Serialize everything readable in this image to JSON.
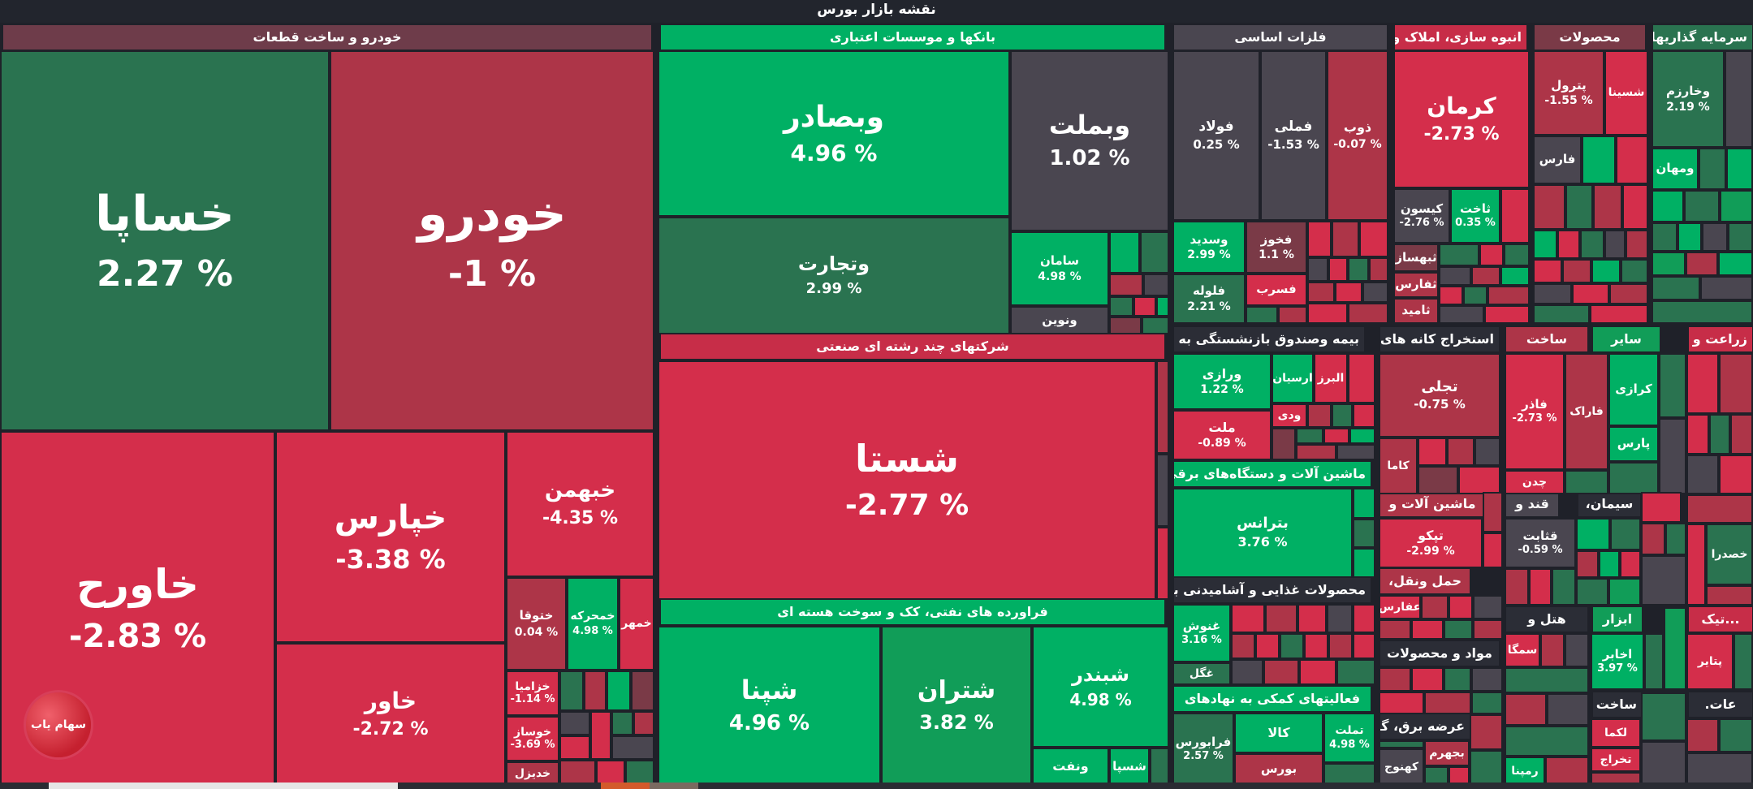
{
  "title": "نقشه بازار بورس",
  "colors": {
    "background": "#1f2129",
    "strong_green": "#00b064",
    "mid_green": "#119d58",
    "dark_green": "#2a7350",
    "neutral": "#4a4650",
    "dark_red": "#7a3a47",
    "mid_red": "#ad3548",
    "strong_red": "#d42e4b"
  },
  "logo": {
    "text": "سهام یاب",
    "icon": "sahamyab-logo-icon"
  },
  "sectors": [
    {
      "name": "خودرو و ساخت قطعات"
    },
    {
      "name": "بانکها و موسسات اعتباری"
    },
    {
      "name": "فلزات اساسی"
    },
    {
      "name": "انبوه سازی، املاک و"
    },
    {
      "name": "محصولات"
    },
    {
      "name": "سرمایه گذاریها"
    },
    {
      "name": "شرکتهای چند رشته ای صنعتی"
    },
    {
      "name": "بیمه وصندوق بازنشستگی به"
    },
    {
      "name": "استخراج کانه های"
    },
    {
      "name": "ساخت"
    },
    {
      "name": "سایر"
    },
    {
      "name": "زراعت و"
    },
    {
      "name": "ماشین آلات و دستگاه‌های برقی"
    },
    {
      "name": "ماشین آلات و"
    },
    {
      "name": "قند و"
    },
    {
      "name": "سیمان،"
    },
    {
      "name": "حمل ونقل،"
    },
    {
      "name": "محصولات غذایی و آشامیدنی به"
    },
    {
      "name": "فراورده های نفتی، کک و سوخت هسته ای"
    },
    {
      "name": "هتل و"
    },
    {
      "name": "ابزار"
    },
    {
      "name": "...تیک"
    },
    {
      "name": "مواد و محصولات"
    },
    {
      "name": "فعالیتهای کمکی به نهادهای"
    },
    {
      "name": "عرضه برق، گاز،"
    },
    {
      "name": "ساخت"
    },
    {
      "name": "عات."
    }
  ],
  "tiles": [
    {
      "name": "خساپا",
      "change": "2.27 %"
    },
    {
      "name": "خودرو",
      "change": "-1 %"
    },
    {
      "name": "خاورح",
      "change": "-2.83 %"
    },
    {
      "name": "خپارس",
      "change": "-3.38 %"
    },
    {
      "name": "خبهمن",
      "change": "-4.35 %"
    },
    {
      "name": "خاور",
      "change": "-2.72 %"
    },
    {
      "name": "ختوقا",
      "change": "0.04 %"
    },
    {
      "name": "خمحرکه",
      "change": "4.98 %"
    },
    {
      "name": "خمهر",
      "change": ""
    },
    {
      "name": "خزامیا",
      "change": "-1.14 %"
    },
    {
      "name": "خوساز",
      "change": "-3.69 %"
    },
    {
      "name": "خدیزل",
      "change": ""
    },
    {
      "name": "وبصادر",
      "change": "4.96 %"
    },
    {
      "name": "وبملت",
      "change": "1.02 %"
    },
    {
      "name": "وتجارت",
      "change": "2.99 %"
    },
    {
      "name": "سامان",
      "change": "4.98 %"
    },
    {
      "name": "ونوین",
      "change": ""
    },
    {
      "name": "شستا",
      "change": "-2.77 %"
    },
    {
      "name": "شپنا",
      "change": "4.96 %"
    },
    {
      "name": "شتران",
      "change": "3.82 %"
    },
    {
      "name": "شبندر",
      "change": "4.98 %"
    },
    {
      "name": "ونفت",
      "change": ""
    },
    {
      "name": "شسپا",
      "change": ""
    },
    {
      "name": "فولاد",
      "change": "0.25 %"
    },
    {
      "name": "فملی",
      "change": "-1.53 %"
    },
    {
      "name": "ذوب",
      "change": "-0.07 %"
    },
    {
      "name": "وسدید",
      "change": "2.99 %"
    },
    {
      "name": "فخوز",
      "change": "1.1 %"
    },
    {
      "name": "فلوله",
      "change": "2.21 %"
    },
    {
      "name": "فسرب",
      "change": ""
    },
    {
      "name": "کرمان",
      "change": "-2.73 %"
    },
    {
      "name": "کیسون",
      "change": "-2.76 %"
    },
    {
      "name": "ثاخت",
      "change": "0.35 %"
    },
    {
      "name": "ثبهساز",
      "change": ""
    },
    {
      "name": "ثفارس",
      "change": ""
    },
    {
      "name": "ثامید",
      "change": ""
    },
    {
      "name": "پترول",
      "change": "-1.55 %"
    },
    {
      "name": "شسینا",
      "change": ""
    },
    {
      "name": "فارس",
      "change": ""
    },
    {
      "name": "وخارزم",
      "change": "2.19 %"
    },
    {
      "name": "ومهان",
      "change": ""
    },
    {
      "name": "ورازی",
      "change": "1.22 %"
    },
    {
      "name": "ارسیان",
      "change": ""
    },
    {
      "name": "البرز",
      "change": ""
    },
    {
      "name": "ملت",
      "change": "-0.89 %"
    },
    {
      "name": "ودی",
      "change": ""
    },
    {
      "name": "تجلی",
      "change": "-0.75 %"
    },
    {
      "name": "کاما",
      "change": ""
    },
    {
      "name": "فاذر",
      "change": "-2.73 %"
    },
    {
      "name": "فاراک",
      "change": ""
    },
    {
      "name": "چدن",
      "change": ""
    },
    {
      "name": "کرازی",
      "change": ""
    },
    {
      "name": "پارس",
      "change": ""
    },
    {
      "name": "بترانس",
      "change": "3.76 %"
    },
    {
      "name": "تپکو",
      "change": "-2.99 %"
    },
    {
      "name": "قثابت",
      "change": "-0.59 %"
    },
    {
      "name": "خصدرا",
      "change": ""
    },
    {
      "name": "عفارس",
      "change": ""
    },
    {
      "name": "غنوش",
      "change": "3.16 %"
    },
    {
      "name": "غگل",
      "change": ""
    },
    {
      "name": "سمگا",
      "change": ""
    },
    {
      "name": "اخابر",
      "change": "3.97 %"
    },
    {
      "name": "پتایر",
      "change": ""
    },
    {
      "name": "کالا",
      "change": ""
    },
    {
      "name": "تملت",
      "change": "4.98 %"
    },
    {
      "name": "فرابورس",
      "change": "2.57 %"
    },
    {
      "name": "بورس",
      "change": ""
    },
    {
      "name": "بجهرم",
      "change": ""
    },
    {
      "name": "کهنوج",
      "change": ""
    },
    {
      "name": "رمپنا",
      "change": ""
    },
    {
      "name": "لکما",
      "change": ""
    },
    {
      "name": "تخراج",
      "change": ""
    }
  ]
}
